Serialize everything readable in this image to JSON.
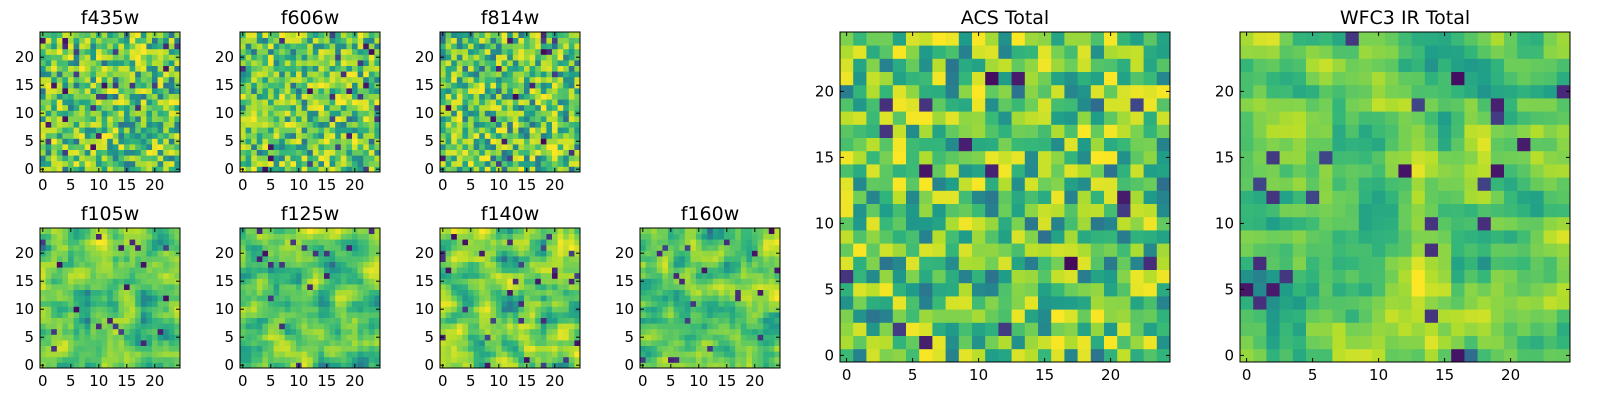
{
  "figure": {
    "colormap": "viridis",
    "colors": {
      "frame": "#000000",
      "background": "#ffffff"
    }
  },
  "chart_data": [
    {
      "type": "heatmap",
      "title": "f435w",
      "size": 25,
      "xticks": [
        "0",
        "5",
        "10",
        "15",
        "20"
      ],
      "yticks": [
        "0",
        "5",
        "10",
        "15",
        "20"
      ],
      "xlim": [
        -0.5,
        24.5
      ],
      "ylim": [
        -0.5,
        24.5
      ],
      "grid": false,
      "legend": "none"
    },
    {
      "type": "heatmap",
      "title": "f606w",
      "size": 25,
      "xticks": [
        "0",
        "5",
        "10",
        "15",
        "20"
      ],
      "yticks": [
        "0",
        "5",
        "10",
        "15",
        "20"
      ],
      "xlim": [
        -0.5,
        24.5
      ],
      "ylim": [
        -0.5,
        24.5
      ],
      "grid": false,
      "legend": "none"
    },
    {
      "type": "heatmap",
      "title": "f814w",
      "size": 25,
      "xticks": [
        "0",
        "5",
        "10",
        "15",
        "20"
      ],
      "yticks": [
        "0",
        "5",
        "10",
        "15",
        "20"
      ],
      "xlim": [
        -0.5,
        24.5
      ],
      "ylim": [
        -0.5,
        24.5
      ],
      "grid": false,
      "legend": "none"
    },
    {
      "type": "heatmap",
      "title": "f105w",
      "size": 25,
      "xticks": [
        "0",
        "5",
        "10",
        "15",
        "20"
      ],
      "yticks": [
        "0",
        "5",
        "10",
        "15",
        "20"
      ],
      "xlim": [
        -0.5,
        24.5
      ],
      "ylim": [
        -0.5,
        24.5
      ],
      "grid": false,
      "legend": "none"
    },
    {
      "type": "heatmap",
      "title": "f125w",
      "size": 25,
      "xticks": [
        "0",
        "5",
        "10",
        "15",
        "20"
      ],
      "yticks": [
        "0",
        "5",
        "10",
        "15",
        "20"
      ],
      "xlim": [
        -0.5,
        24.5
      ],
      "ylim": [
        -0.5,
        24.5
      ],
      "grid": false,
      "legend": "none"
    },
    {
      "type": "heatmap",
      "title": "f140w",
      "size": 25,
      "xticks": [
        "0",
        "5",
        "10",
        "15",
        "20"
      ],
      "yticks": [
        "0",
        "5",
        "10",
        "15",
        "20"
      ],
      "xlim": [
        -0.5,
        24.5
      ],
      "ylim": [
        -0.5,
        24.5
      ],
      "grid": false,
      "legend": "none"
    },
    {
      "type": "heatmap",
      "title": "f160w",
      "size": 25,
      "xticks": [
        "0",
        "5",
        "10",
        "15",
        "20"
      ],
      "yticks": [
        "0",
        "5",
        "10",
        "15",
        "20"
      ],
      "xlim": [
        -0.5,
        24.5
      ],
      "ylim": [
        -0.5,
        24.5
      ],
      "grid": false,
      "legend": "none"
    },
    {
      "type": "heatmap",
      "title": "ACS Total",
      "size": 25,
      "xticks": [
        "0",
        "5",
        "10",
        "15",
        "20"
      ],
      "yticks": [
        "0",
        "5",
        "10",
        "15",
        "20"
      ],
      "xlim": [
        -0.5,
        24.5
      ],
      "ylim": [
        -0.5,
        24.5
      ],
      "grid": false,
      "legend": "none"
    },
    {
      "type": "heatmap",
      "title": "WFC3 IR Total",
      "size": 25,
      "xticks": [
        "0",
        "5",
        "10",
        "15",
        "20"
      ],
      "yticks": [
        "0",
        "5",
        "10",
        "15",
        "20"
      ],
      "xlim": [
        -0.5,
        24.5
      ],
      "ylim": [
        -0.5,
        24.5
      ],
      "grid": false,
      "legend": "none"
    }
  ]
}
